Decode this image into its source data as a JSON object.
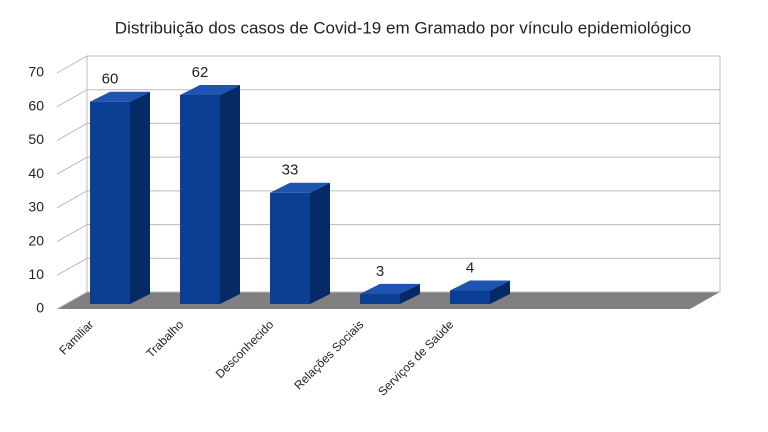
{
  "chart_data": {
    "type": "bar",
    "title": "Distribuição dos casos de Covid-19 em Gramado por vínculo epidemiológico",
    "categories": [
      "Familiar",
      "Trabalho",
      "Desconhecido",
      "Relações Sociais",
      "Serviços de Saúde"
    ],
    "values": [
      60,
      62,
      33,
      3,
      4
    ],
    "color": "#0b3f94",
    "ylim": [
      0,
      70
    ],
    "yticks": [
      0,
      10,
      20,
      30,
      40,
      50,
      60,
      70
    ],
    "grid": true
  }
}
